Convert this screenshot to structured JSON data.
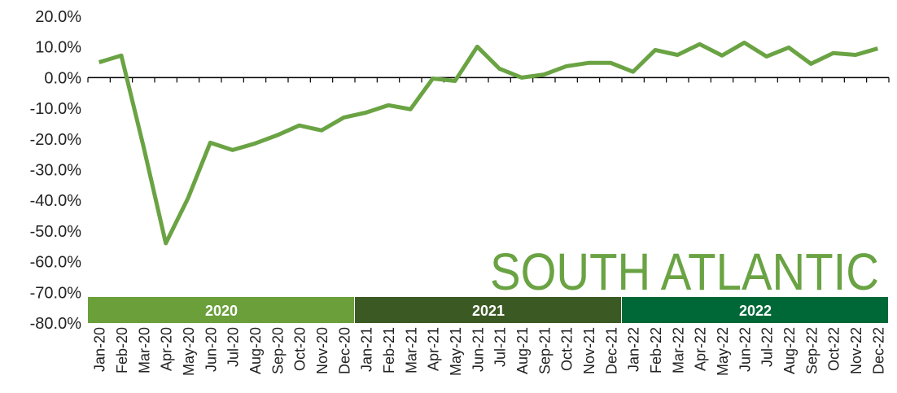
{
  "chart_data": {
    "type": "line",
    "annotation": "SOUTH ATLANTIC",
    "annotation_color": "#6aa343",
    "categories": [
      "Jan-20",
      "Feb-20",
      "Mar-20",
      "Apr-20",
      "May-20",
      "Jun-20",
      "Jul-20",
      "Aug-20",
      "Sep-20",
      "Oct-20",
      "Nov-20",
      "Dec-20",
      "Jan-21",
      "Feb-21",
      "Mar-21",
      "Apr-21",
      "May-21",
      "Jun-21",
      "Jul-21",
      "Aug-21",
      "Sep-21",
      "Oct-21",
      "Nov-21",
      "Dec-21",
      "Jan-22",
      "Feb-22",
      "Mar-22",
      "Apr-22",
      "May-22",
      "Jun-22",
      "Jul-22",
      "Aug-22",
      "Sep-22",
      "Oct-22",
      "Nov-22",
      "Dec-22"
    ],
    "series": [
      {
        "color": "#6aa343",
        "values": [
          5.0,
          7.2,
          -22.5,
          -54.0,
          -39.3,
          -21.2,
          -23.6,
          -21.5,
          -18.8,
          -15.6,
          -17.2,
          -13.0,
          -11.4,
          -9.0,
          -10.3,
          -0.3,
          -1.1,
          10.1,
          2.9,
          0.0,
          1.0,
          3.7,
          4.8,
          4.8,
          1.9,
          9.0,
          7.4,
          10.9,
          7.2,
          11.4,
          6.9,
          9.8,
          4.5,
          8.0,
          7.4,
          9.5
        ]
      }
    ],
    "year_bands": [
      {
        "name": "2020",
        "color": "#6a9f3a"
      },
      {
        "name": "2021",
        "color": "#3b5a23"
      },
      {
        "name": "2022",
        "color": "#006837"
      }
    ],
    "ylim": [
      -80,
      20
    ],
    "yticks": [
      {
        "value": 20,
        "label": "20.0%"
      },
      {
        "value": 10,
        "label": "10.0%"
      },
      {
        "value": 0,
        "label": "0.0%"
      },
      {
        "value": -10,
        "label": "-10.0%"
      },
      {
        "value": -20,
        "label": "-20.0%"
      },
      {
        "value": -30,
        "label": "-30.0%"
      },
      {
        "value": -40,
        "label": "-40.0%"
      },
      {
        "value": -50,
        "label": "-50.0%"
      },
      {
        "value": -60,
        "label": "-60.0%"
      },
      {
        "value": -70,
        "label": "-70.0%"
      },
      {
        "value": -80,
        "label": "-80.0%"
      }
    ],
    "grid": false
  }
}
